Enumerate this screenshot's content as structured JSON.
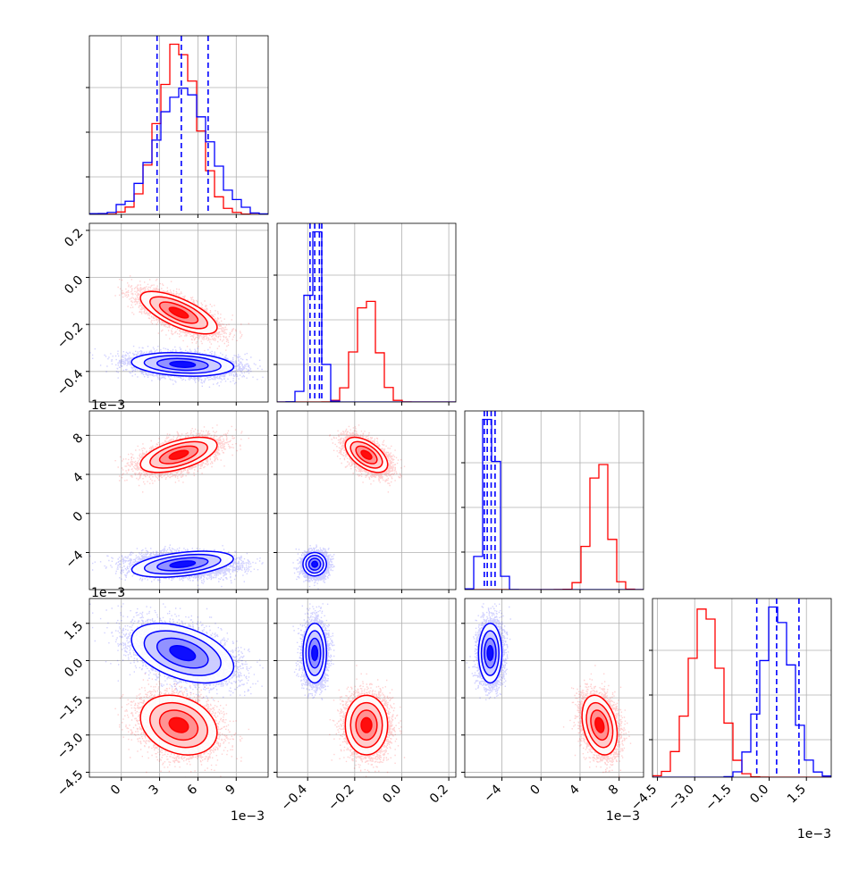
{
  "figure": {
    "type": "corner-plot"
  },
  "colors": {
    "red": "#ff0000",
    "blue": "#0000ff",
    "grid": "#b0b0b0"
  },
  "chart_data": {
    "type": "corner",
    "parameters": 4,
    "axes": [
      {
        "index": 0,
        "range": [
          -0.0025,
          0.0115
        ],
        "ticks": [
          0,
          0.003,
          0.006,
          0.009
        ],
        "tick_labels": [
          "0",
          "3",
          "6",
          "9"
        ],
        "offset_label": "1e−3"
      },
      {
        "index": 1,
        "range": [
          -0.53,
          0.23
        ],
        "ticks": [
          -0.4,
          -0.2,
          0.0,
          0.2
        ],
        "tick_labels": [
          "−0.4",
          "−0.2",
          "0.0",
          "0.2"
        ],
        "offset_label": ""
      },
      {
        "index": 2,
        "range": [
          -0.0078,
          0.0105
        ],
        "ticks": [
          -0.004,
          0,
          0.004,
          0.008
        ],
        "tick_labels": [
          "−4",
          "0",
          "4",
          "8"
        ],
        "offset_label": "1e−3"
      },
      {
        "index": 3,
        "range": [
          -0.0047,
          0.0025
        ],
        "ticks": [
          -0.0045,
          -0.003,
          -0.0015,
          0.0,
          0.0015
        ],
        "tick_labels": [
          "−4.5",
          "−3.0",
          "−1.5",
          "0.0",
          "1.5"
        ],
        "offset_label": "1e−3"
      }
    ],
    "series": [
      {
        "color": "red",
        "mean": [
          0.0045,
          -0.15,
          0.006,
          -0.0026
        ],
        "std": [
          0.0015,
          0.045,
          0.0009,
          0.0006
        ],
        "corr": [
          [
            0,
            1,
            -0.7
          ],
          [
            0,
            2,
            0.55
          ],
          [
            1,
            2,
            -0.55
          ],
          [
            2,
            3,
            -0.3
          ],
          [
            0,
            3,
            -0.25
          ]
        ]
      },
      {
        "color": "blue",
        "mean": [
          0.0048,
          -0.37,
          -0.0052,
          0.0003
        ],
        "std": [
          0.002,
          0.025,
          0.0006,
          0.0006
        ],
        "corr": [
          [
            0,
            1,
            -0.2
          ],
          [
            0,
            3,
            -0.45
          ]
        ]
      }
    ],
    "quantile_lines": [
      {
        "param": 0,
        "values": [
          0.0028,
          0.0047,
          0.0068
        ]
      },
      {
        "param": 1,
        "values": [
          -0.39,
          -0.37,
          -0.35,
          -0.34
        ]
      },
      {
        "param": 2,
        "values": [
          -0.0058,
          -0.0055,
          -0.0051,
          -0.0047
        ]
      },
      {
        "param": 3,
        "values": [
          -0.0005,
          0.0003,
          0.0012
        ]
      }
    ]
  }
}
